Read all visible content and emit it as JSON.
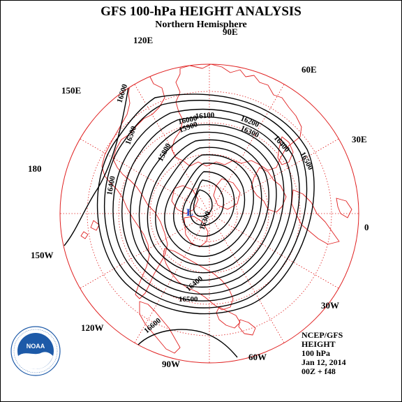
{
  "title": "GFS 100-hPa HEIGHT ANALYSIS",
  "subtitle": "Northern Hemisphere",
  "longitude_labels": [
    {
      "name": "lon-label-90e",
      "text": "90E"
    },
    {
      "name": "lon-label-120e",
      "text": "120E"
    },
    {
      "name": "lon-label-60e",
      "text": "60E"
    },
    {
      "name": "lon-label-150e",
      "text": "150E"
    },
    {
      "name": "lon-label-30e",
      "text": "30E"
    },
    {
      "name": "lon-label-180",
      "text": "180"
    },
    {
      "name": "lon-label-0",
      "text": "0"
    },
    {
      "name": "lon-label-150w",
      "text": "150W"
    },
    {
      "name": "lon-label-30w",
      "text": "30W"
    },
    {
      "name": "lon-label-120w",
      "text": "120W"
    },
    {
      "name": "lon-label-60w",
      "text": "60W"
    },
    {
      "name": "lon-label-90w",
      "text": "90W"
    }
  ],
  "contour_labels": [
    {
      "name": "contour-label-16600-nw",
      "text": "16600"
    },
    {
      "name": "contour-label-16500-nw",
      "text": "16500"
    },
    {
      "name": "contour-label-16400-w",
      "text": "16400"
    },
    {
      "name": "contour-label-15800",
      "text": "15800"
    },
    {
      "name": "contour-label-15900",
      "text": "15900"
    },
    {
      "name": "contour-label-16000",
      "text": "16000"
    },
    {
      "name": "contour-label-16100",
      "text": "16100"
    },
    {
      "name": "contour-label-16200",
      "text": "16200"
    },
    {
      "name": "contour-label-16300",
      "text": "16300"
    },
    {
      "name": "contour-label-15300",
      "text": "15300"
    },
    {
      "name": "contour-label-16400-ne",
      "text": "16400"
    },
    {
      "name": "contour-label-16500-ne",
      "text": "16500"
    },
    {
      "name": "contour-label-16500-s",
      "text": "16500"
    },
    {
      "name": "contour-label-16400-s",
      "text": "16400"
    },
    {
      "name": "contour-label-16600-s",
      "text": "16600"
    }
  ],
  "low_center_label": "L",
  "logo_text": "NOAA",
  "info_lines": [
    "NCEP/GFS",
    "HEIGHT",
    "100 hPa",
    "Jan 12, 2014",
    "00Z + f48"
  ],
  "colors": {
    "grid": "#e02020",
    "coast": "#e02020",
    "contour": "#000000",
    "low_center": "#1a3cc8",
    "logo_blue": "#1d5aa8"
  }
}
